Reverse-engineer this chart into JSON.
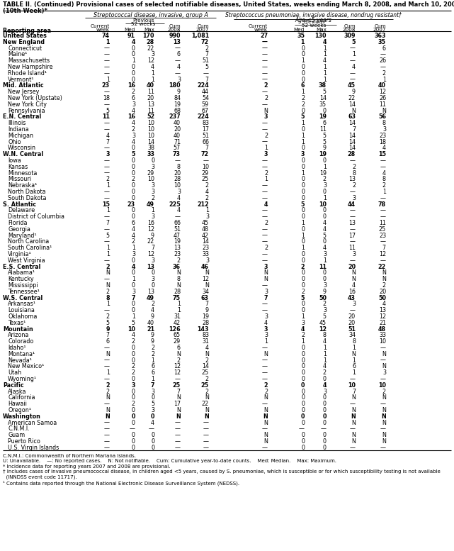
{
  "title": "TABLE II. (Continued) Provisional cases of selected notifiable diseases, United States, weeks ending March 8, 2008, and March 10, 2007",
  "subtitle": "(10th Week)*",
  "rows": [
    [
      "United States",
      "74",
      "91",
      "170",
      "990",
      "1,081",
      "27",
      "35",
      "130",
      "309",
      "363"
    ],
    [
      "New England",
      "1",
      "4",
      "28",
      "13",
      "72",
      "—",
      "1",
      "4",
      "5",
      "35"
    ],
    [
      "Connecticut",
      "—",
      "0",
      "22",
      "—",
      "2",
      "—",
      "0",
      "1",
      "—",
      "6"
    ],
    [
      "Maine¹",
      "—",
      "0",
      "3",
      "6",
      "7",
      "—",
      "0",
      "1",
      "1",
      "—"
    ],
    [
      "Massachusetts",
      "—",
      "1",
      "12",
      "—",
      "51",
      "—",
      "1",
      "4",
      "—",
      "26"
    ],
    [
      "New Hampshire",
      "—",
      "0",
      "4",
      "4",
      "5",
      "—",
      "0",
      "1",
      "4",
      "—"
    ],
    [
      "Rhode Island¹",
      "—",
      "0",
      "1",
      "—",
      "—",
      "—",
      "0",
      "1",
      "—",
      "2"
    ],
    [
      "Vermont¹",
      "1",
      "0",
      "1",
      "3",
      "7",
      "—",
      "0",
      "1",
      "—",
      "1"
    ],
    [
      "Mid. Atlantic",
      "23",
      "16",
      "40",
      "180",
      "224",
      "2",
      "6",
      "38",
      "45",
      "40"
    ],
    [
      "New Jersey",
      "—",
      "2",
      "11",
      "9",
      "44",
      "—",
      "1",
      "5",
      "9",
      "12"
    ],
    [
      "New York (Upstate)",
      "18",
      "6",
      "20",
      "84",
      "54",
      "2",
      "2",
      "14",
      "22",
      "26"
    ],
    [
      "New York City",
      "—",
      "3",
      "13",
      "19",
      "59",
      "—",
      "2",
      "35",
      "14",
      "11"
    ],
    [
      "Pennsylvania",
      "5",
      "4",
      "11",
      "68",
      "67",
      "N",
      "0",
      "0",
      "N",
      "N"
    ],
    [
      "E.N. Central",
      "11",
      "16",
      "52",
      "237",
      "224",
      "3",
      "5",
      "19",
      "63",
      "56"
    ],
    [
      "Illinois",
      "—",
      "4",
      "10",
      "40",
      "83",
      "—",
      "1",
      "6",
      "14",
      "8"
    ],
    [
      "Indiana",
      "—",
      "2",
      "10",
      "20",
      "17",
      "—",
      "0",
      "11",
      "7",
      "3"
    ],
    [
      "Michigan",
      "4",
      "3",
      "10",
      "40",
      "51",
      "2",
      "1",
      "5",
      "14",
      "23"
    ],
    [
      "Ohio",
      "7",
      "4",
      "14",
      "71",
      "66",
      "—",
      "1",
      "5",
      "14",
      "18"
    ],
    [
      "Wisconsin",
      "—",
      "0",
      "38",
      "57",
      "7",
      "1",
      "0",
      "9",
      "14",
      "4"
    ],
    [
      "W.N. Central",
      "3",
      "5",
      "33",
      "73",
      "72",
      "3",
      "3",
      "19",
      "28",
      "15"
    ],
    [
      "Iowa",
      "—",
      "0",
      "0",
      "—",
      "—",
      "—",
      "0",
      "0",
      "—",
      "—"
    ],
    [
      "Kansas",
      "—",
      "0",
      "3",
      "8",
      "10",
      "—",
      "0",
      "1",
      "2",
      "—"
    ],
    [
      "Minnesota",
      "—",
      "0",
      "29",
      "20",
      "29",
      "2",
      "1",
      "19",
      "8",
      "4"
    ],
    [
      "Missouri",
      "2",
      "2",
      "10",
      "28",
      "25",
      "1",
      "0",
      "2",
      "13",
      "8"
    ],
    [
      "Nebraska¹",
      "1",
      "0",
      "3",
      "10",
      "2",
      "—",
      "0",
      "3",
      "2",
      "2"
    ],
    [
      "North Dakota",
      "—",
      "0",
      "3",
      "3",
      "4",
      "—",
      "0",
      "0",
      "—",
      "1"
    ],
    [
      "South Dakota",
      "—",
      "0",
      "2",
      "4",
      "2",
      "—",
      "0",
      "1",
      "3",
      "—"
    ],
    [
      "S. Atlantic",
      "15",
      "23",
      "49",
      "225",
      "212",
      "4",
      "5",
      "10",
      "44",
      "78"
    ],
    [
      "Delaware",
      "1",
      "0",
      "1",
      "4",
      "1",
      "—",
      "0",
      "0",
      "—",
      "—"
    ],
    [
      "District of Columbia",
      "—",
      "0",
      "3",
      "—",
      "3",
      "—",
      "0",
      "0",
      "—",
      "—"
    ],
    [
      "Florida",
      "7",
      "6",
      "16",
      "66",
      "45",
      "2",
      "1",
      "4",
      "13",
      "11"
    ],
    [
      "Georgia",
      "—",
      "4",
      "12",
      "51",
      "48",
      "—",
      "0",
      "4",
      "—",
      "25"
    ],
    [
      "Maryland¹",
      "5",
      "4",
      "9",
      "47",
      "42",
      "—",
      "1",
      "5",
      "17",
      "23"
    ],
    [
      "North Carolina",
      "—",
      "2",
      "22",
      "19",
      "14",
      "—",
      "0",
      "0",
      "—",
      "—"
    ],
    [
      "South Carolina¹",
      "1",
      "1",
      "7",
      "13",
      "23",
      "2",
      "1",
      "4",
      "11",
      "7"
    ],
    [
      "Virginia¹",
      "1",
      "3",
      "12",
      "23",
      "33",
      "—",
      "0",
      "3",
      "3",
      "12"
    ],
    [
      "West Virginia",
      "—",
      "0",
      "3",
      "2",
      "3",
      "—",
      "0",
      "1",
      "—",
      "—"
    ],
    [
      "E.S. Central",
      "2",
      "4",
      "13",
      "36",
      "46",
      "3",
      "2",
      "11",
      "20",
      "22"
    ],
    [
      "Alabama¹",
      "N",
      "0",
      "0",
      "N",
      "N",
      "N",
      "0",
      "0",
      "N",
      "N"
    ],
    [
      "Kentucky",
      "—",
      "1",
      "3",
      "8",
      "12",
      "N",
      "0",
      "0",
      "N",
      "N"
    ],
    [
      "Mississippi",
      "N",
      "0",
      "0",
      "N",
      "N",
      "—",
      "0",
      "3",
      "4",
      "2"
    ],
    [
      "Tennessee¹",
      "2",
      "3",
      "13",
      "28",
      "34",
      "3",
      "2",
      "9",
      "16",
      "20"
    ],
    [
      "W.S. Central",
      "8",
      "7",
      "49",
      "75",
      "63",
      "7",
      "5",
      "50",
      "43",
      "50"
    ],
    [
      "Arkansas¹",
      "1",
      "0",
      "2",
      "1",
      "7",
      "—",
      "0",
      "2",
      "3",
      "4"
    ],
    [
      "Louisiana",
      "—",
      "0",
      "4",
      "1",
      "9",
      "—",
      "0",
      "3",
      "—",
      "13"
    ],
    [
      "Oklahoma",
      "2",
      "1",
      "9",
      "31",
      "19",
      "3",
      "1",
      "5",
      "20",
      "12"
    ],
    [
      "Texas¹",
      "5",
      "5",
      "40",
      "42",
      "28",
      "4",
      "3",
      "45",
      "20",
      "21"
    ],
    [
      "Mountain",
      "9",
      "10",
      "21",
      "126",
      "143",
      "3",
      "4",
      "12",
      "51",
      "48"
    ],
    [
      "Arizona",
      "7",
      "4",
      "9",
      "65",
      "83",
      "3",
      "2",
      "8",
      "34",
      "33"
    ],
    [
      "Colorado",
      "6",
      "2",
      "9",
      "29",
      "31",
      "1",
      "1",
      "4",
      "8",
      "10"
    ],
    [
      "Idaho¹",
      "—",
      "0",
      "2",
      "6",
      "4",
      "—",
      "0",
      "1",
      "1",
      "—"
    ],
    [
      "Montana¹",
      "N",
      "0",
      "2",
      "N",
      "N",
      "N",
      "0",
      "1",
      "N",
      "N"
    ],
    [
      "Nevada¹",
      "—",
      "0",
      "1",
      "2",
      "2",
      "—",
      "0",
      "1",
      "1",
      "—"
    ],
    [
      "New Mexico¹",
      "—",
      "2",
      "6",
      "12",
      "14",
      "—",
      "0",
      "4",
      "6",
      "N"
    ],
    [
      "Utah",
      "1",
      "2",
      "6",
      "12",
      "25",
      "—",
      "0",
      "2",
      "1",
      "3"
    ],
    [
      "Wyoming¹",
      "—",
      "0",
      "1",
      "—",
      "2",
      "—",
      "0",
      "0",
      "—",
      "—"
    ],
    [
      "Pacific",
      "2",
      "3",
      "7",
      "25",
      "25",
      "2",
      "0",
      "4",
      "10",
      "10"
    ],
    [
      "Alaska",
      "2",
      "0",
      "3",
      "7",
      "2",
      "2",
      "0",
      "3",
      "7",
      "2"
    ],
    [
      "California",
      "N",
      "0",
      "0",
      "N",
      "N",
      "N",
      "0",
      "0",
      "N",
      "N"
    ],
    [
      "Hawaii",
      "—",
      "2",
      "5",
      "17",
      "22",
      "—",
      "0",
      "0",
      "—",
      "—"
    ],
    [
      "Oregon¹",
      "N",
      "0",
      "3",
      "N",
      "N",
      "N",
      "0",
      "0",
      "N",
      "N"
    ],
    [
      "Washington",
      "N",
      "0",
      "0",
      "N",
      "N",
      "N",
      "0",
      "0",
      "N",
      "N"
    ],
    [
      "American Samoa",
      "—",
      "0",
      "4",
      "—",
      "—",
      "N",
      "0",
      "0",
      "N",
      "N"
    ],
    [
      "C.N.M.I.",
      "—",
      "—",
      "—",
      "—",
      "—",
      "—",
      "—",
      "—",
      "—",
      "—"
    ],
    [
      "Guam",
      "—",
      "0",
      "0",
      "—",
      "—",
      "N",
      "0",
      "0",
      "N",
      "N"
    ],
    [
      "Puerto Rico",
      "—",
      "0",
      "0",
      "—",
      "—",
      "N",
      "0",
      "0",
      "N",
      "N"
    ],
    [
      "U.S. Virgin Islands",
      "—",
      "0",
      "0",
      "—",
      "—",
      "—",
      "0",
      "0",
      "—",
      "—"
    ]
  ],
  "bold_rows": [
    0,
    1,
    8,
    13,
    19,
    27,
    37,
    42,
    47,
    56,
    61
  ],
  "footnotes": [
    "C.N.M.I.: Commonwealth of Northern Mariana Islands.",
    "U: Unavailable.    —: No reported cases.    N: Not notifiable.    Cum: Cumulative year-to-date counts.    Med: Median.    Max: Maximum.",
    "* Incidence data for reporting years 2007 and 2008 are provisional.",
    "† Includes cases of invasive pneumococcal disease, in children aged <5 years, caused by S. pneumoniae, which is susceptible or for which susceptibility testing is not available",
    "  (INNDSS event code 11717).",
    "¹ Contains data reported through the National Electronic Disease Surveillance System (NEDSS)."
  ]
}
